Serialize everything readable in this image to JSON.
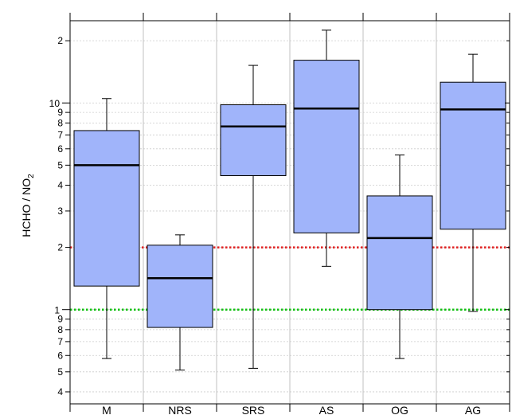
{
  "chart_data": {
    "type": "box",
    "title": "",
    "xlabel": "",
    "ylabel": "HCHO / NO",
    "ylabel_subscript": "2",
    "yscale": "log",
    "ylim": [
      0.35,
      25
    ],
    "categories": [
      "M",
      "NRS",
      "SRS",
      "AS",
      "OG",
      "AG"
    ],
    "boxes": [
      {
        "whisker_low": 0.58,
        "q1": 1.3,
        "median": 5.0,
        "q3": 7.35,
        "whisker_high": 10.5
      },
      {
        "whisker_low": 0.51,
        "q1": 0.82,
        "median": 1.42,
        "q3": 2.05,
        "whisker_high": 2.3
      },
      {
        "whisker_low": 0.52,
        "q1": 4.45,
        "median": 7.7,
        "q3": 9.8,
        "whisker_high": 15.2
      },
      {
        "whisker_low": 1.62,
        "q1": 2.35,
        "median": 9.4,
        "q3": 16.1,
        "whisker_high": 22.5
      },
      {
        "whisker_low": 0.58,
        "q1": 1.0,
        "median": 2.22,
        "q3": 3.55,
        "whisker_high": 5.6
      },
      {
        "whisker_low": 0.98,
        "q1": 2.45,
        "median": 9.3,
        "q3": 12.6,
        "whisker_high": 17.2
      }
    ],
    "reference_lines": [
      {
        "y": 2,
        "color": "#e02020",
        "style": "dotted"
      },
      {
        "y": 1,
        "color": "#10c010",
        "style": "dotted"
      }
    ],
    "major_ticks": [
      {
        "value": 1,
        "label": "1"
      },
      {
        "value": 10,
        "label": "10"
      }
    ],
    "minor_ticks": [
      {
        "value": 0.4,
        "label": "4"
      },
      {
        "value": 0.5,
        "label": "5"
      },
      {
        "value": 0.6,
        "label": "6"
      },
      {
        "value": 0.7,
        "label": "7"
      },
      {
        "value": 0.8,
        "label": "8"
      },
      {
        "value": 0.9,
        "label": "9"
      },
      {
        "value": 2,
        "label": "2"
      },
      {
        "value": 3,
        "label": "3"
      },
      {
        "value": 4,
        "label": "4"
      },
      {
        "value": 5,
        "label": "5"
      },
      {
        "value": 6,
        "label": "6"
      },
      {
        "value": 7,
        "label": "7"
      },
      {
        "value": 8,
        "label": "8"
      },
      {
        "value": 9,
        "label": "9"
      },
      {
        "value": 20,
        "label": "2"
      }
    ],
    "grid": true,
    "colors": {
      "box_fill": "#a0b4fa",
      "box_stroke": "#000000",
      "grid": "#cccccc",
      "category_divider": "#c0c0c0"
    }
  }
}
